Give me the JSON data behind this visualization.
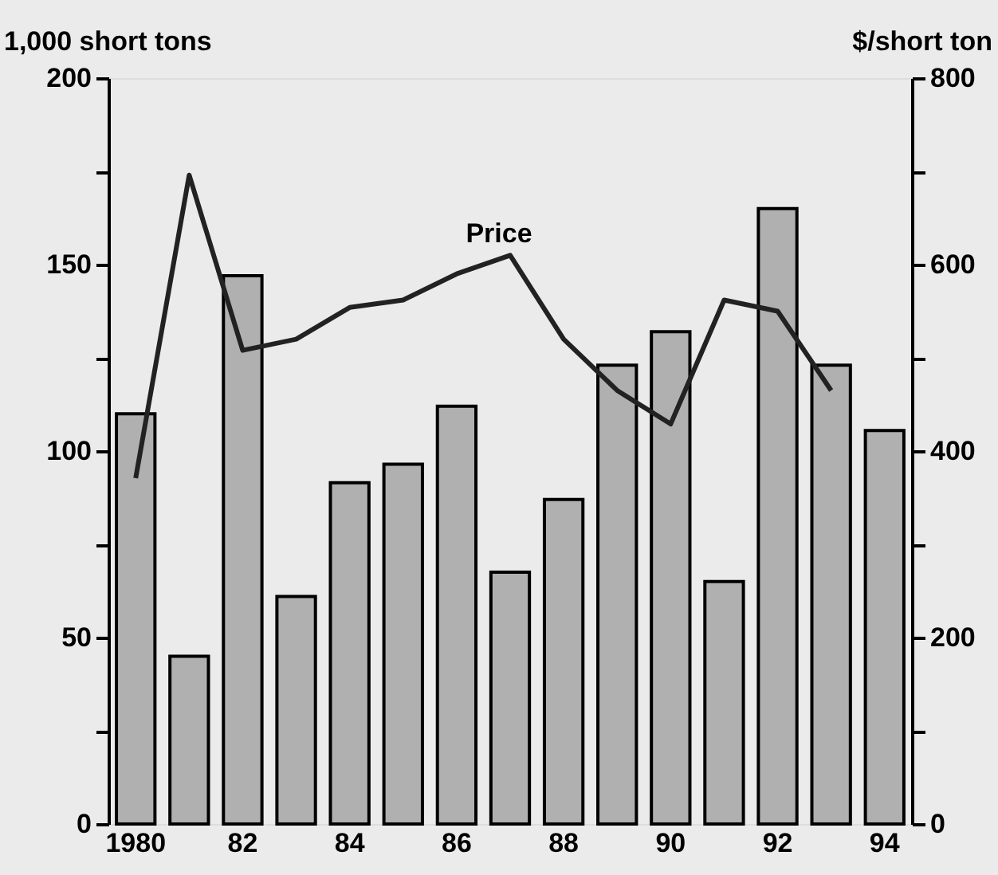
{
  "chart_data": {
    "type": "bar",
    "ylabel": "1,000 short tons",
    "y2label": "$/short ton",
    "categories": [
      "1980",
      null,
      "82",
      null,
      "84",
      null,
      "86",
      null,
      "88",
      null,
      "90",
      null,
      "92",
      null,
      "94"
    ],
    "series": [
      {
        "color": "#b0b0b0",
        "values": [
          110,
          45,
          147,
          61,
          91.5,
          96.5,
          112,
          67.5,
          87,
          123,
          132,
          65,
          165,
          123,
          105.5
        ]
      },
      {
        "type": "line",
        "name": "Price",
        "axis": "y2",
        "color": "#222222",
        "values": [
          371,
          696,
          508,
          520,
          554,
          562,
          590,
          610,
          520,
          465,
          429,
          562,
          550,
          465,
          null
        ]
      }
    ],
    "ylim": [
      0,
      200
    ],
    "yticks": [
      0,
      {
        "value": 25,
        "label": null
      },
      50,
      {
        "value": 75,
        "label": null
      },
      100,
      {
        "value": 125,
        "label": null
      },
      150,
      {
        "value": 175,
        "label": null
      },
      200
    ],
    "y2lim": [
      0,
      800
    ],
    "y2ticks": [
      0,
      {
        "value": 100,
        "label": null
      },
      200,
      {
        "value": 300,
        "label": null
      },
      400,
      {
        "value": 500,
        "label": null
      },
      600,
      {
        "value": 700,
        "label": null
      },
      800
    ],
    "grid": false,
    "marker": "none",
    "line_style": "solid"
  }
}
